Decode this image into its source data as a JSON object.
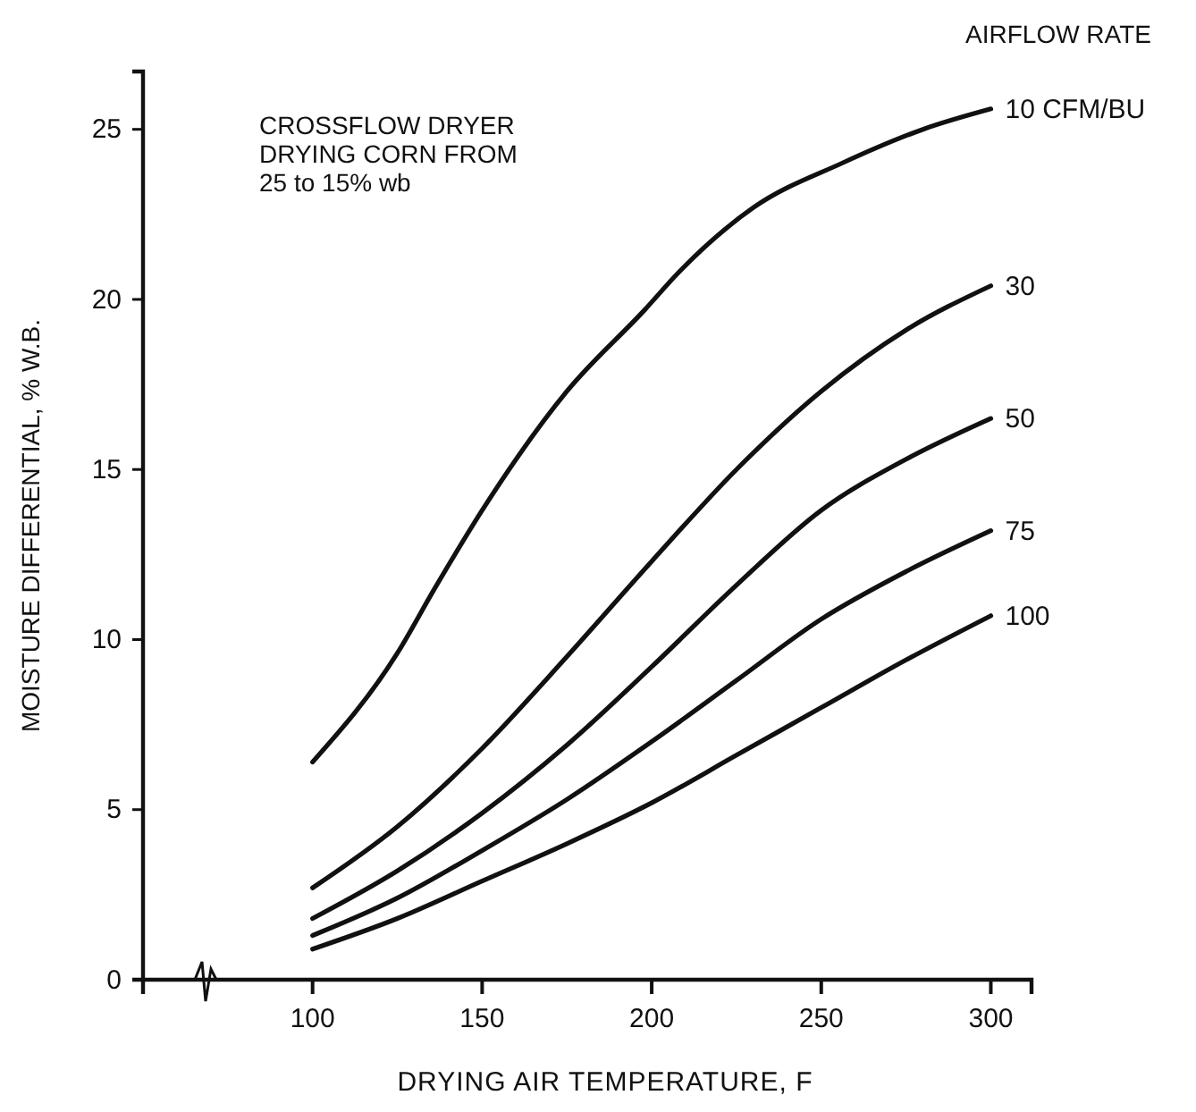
{
  "chart_data": {
    "type": "line",
    "xlabel": "DRYING AIR TEMPERATURE, F",
    "ylabel": "MOISTURE DIFFERENTIAL, % W.B.",
    "legend_title": "AIRFLOW RATE",
    "annotations": [
      "CROSSFLOW DRYER\nDRYING CORN FROM\n25 to 15% wb"
    ],
    "xlim": [
      50,
      312
    ],
    "xticks": [
      100,
      150,
      200,
      250,
      300
    ],
    "ylim": [
      0,
      26.7
    ],
    "yticks": [
      0,
      5,
      10,
      15,
      20,
      25
    ],
    "grid": false,
    "legend": "top right",
    "line_style": "solid",
    "series": [
      {
        "name": "10 CFM/BU",
        "color": "#111111",
        "x": [
          100,
          125,
          136,
          150,
          175,
          198,
          208,
          230,
          256,
          280,
          300
        ],
        "values": [
          6.4,
          9.6,
          11.5,
          13.8,
          17.3,
          19.7,
          20.8,
          22.7,
          24.0,
          25.0,
          25.6
        ]
      },
      {
        "name": "30",
        "color": "#111111",
        "x": [
          100,
          125,
          150,
          175,
          200,
          225,
          250,
          275,
          300
        ],
        "values": [
          2.7,
          4.5,
          6.8,
          9.5,
          12.3,
          15.0,
          17.3,
          19.1,
          20.4
        ]
      },
      {
        "name": "50",
        "color": "#111111",
        "x": [
          100,
          125,
          150,
          175,
          200,
          225,
          250,
          275,
          300
        ],
        "values": [
          1.8,
          3.2,
          4.9,
          6.9,
          9.2,
          11.6,
          13.8,
          15.3,
          16.5
        ]
      },
      {
        "name": "75",
        "color": "#111111",
        "x": [
          100,
          125,
          150,
          175,
          200,
          225,
          250,
          275,
          300
        ],
        "values": [
          1.3,
          2.4,
          3.8,
          5.3,
          7.0,
          8.8,
          10.6,
          12.0,
          13.2
        ]
      },
      {
        "name": "100",
        "color": "#111111",
        "x": [
          100,
          125,
          150,
          175,
          200,
          225,
          250,
          275,
          300
        ],
        "values": [
          0.9,
          1.8,
          2.9,
          4.0,
          5.2,
          6.6,
          8.0,
          9.4,
          10.7
        ]
      }
    ]
  }
}
